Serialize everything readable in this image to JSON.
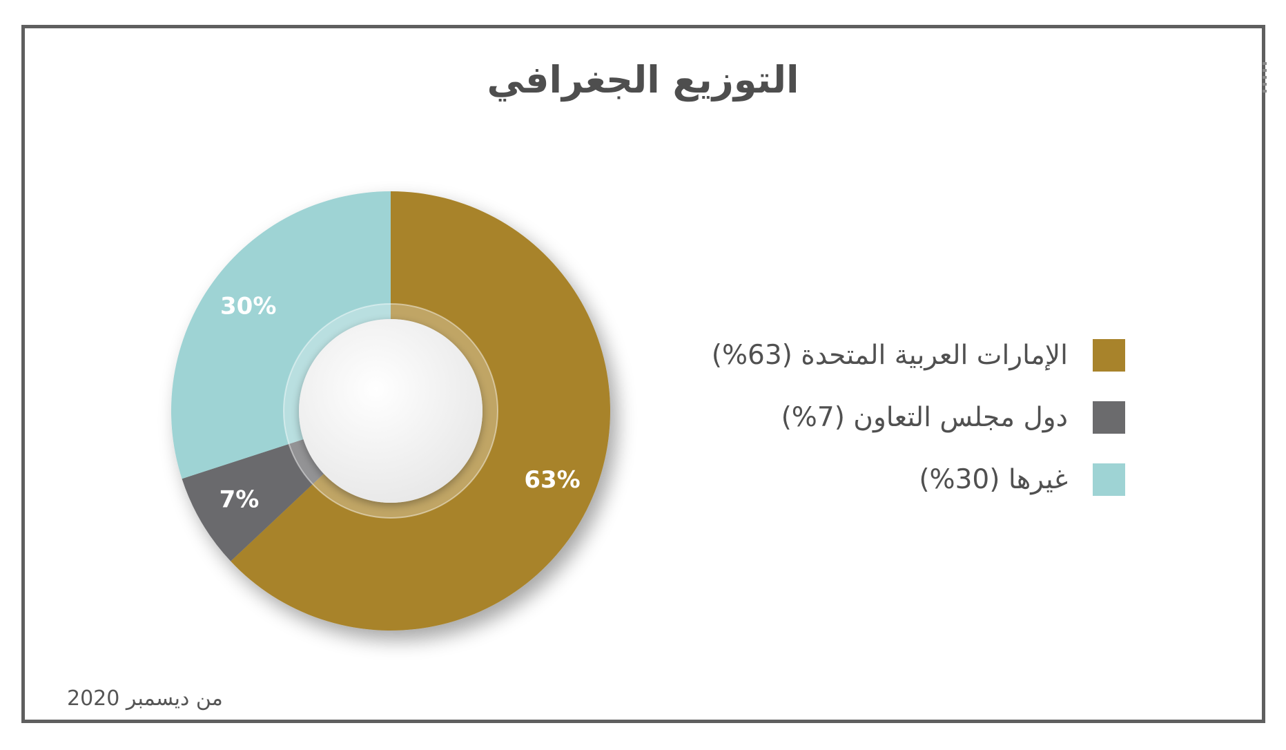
{
  "title": "التوزيع الجغرافي",
  "footer": "من ديسمبر 2020",
  "colors": {
    "frame": "#5f5f5f",
    "uae": "#a8832b",
    "gcc": "#6b6b6d",
    "others": "#9ed3d4",
    "slice_label": "#ffffff"
  },
  "chart_data": {
    "type": "pie",
    "title": "التوزيع الجغرافي",
    "categories": [
      "الإمارات العربية المتحدة (63%)",
      "دول مجلس التعاون (7%)",
      "غيرها (30%)"
    ],
    "values": [
      63,
      7,
      30
    ],
    "data_labels": [
      "63%",
      "7%",
      "30%"
    ],
    "colors": [
      "#a8832b",
      "#6b6b6d",
      "#9ed3d4"
    ],
    "donut": true,
    "legend_position": "right",
    "start_angle": "12 o'clock",
    "direction": "clockwise"
  }
}
